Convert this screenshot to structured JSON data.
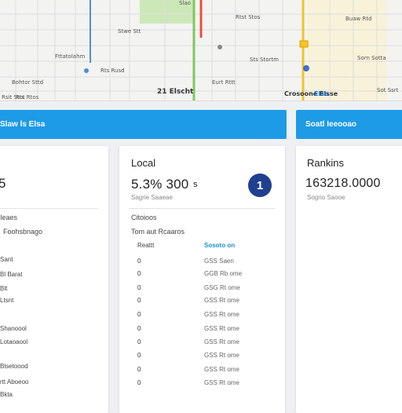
{
  "map": {
    "labels": [
      {
        "id": "a",
        "text": "21 Elscht",
        "kind": "strong"
      },
      {
        "id": "b",
        "text": "Crosoone Elsse",
        "kind": "strong"
      },
      {
        "id": "c",
        "text": "Elso",
        "kind": "blue"
      },
      {
        "id": "d",
        "text": "Bohtor Sttd",
        "kind": "plain"
      },
      {
        "id": "e",
        "text": "Fttatolahm",
        "kind": "plain"
      },
      {
        "id": "f",
        "text": "Rts Rusd",
        "kind": "plain"
      },
      {
        "id": "g",
        "text": "Eurt Rttt",
        "kind": "plain"
      },
      {
        "id": "h",
        "text": "Sts Stortm",
        "kind": "plain"
      },
      {
        "id": "i",
        "text": "Sorn Sotta",
        "kind": "plain"
      },
      {
        "id": "j",
        "text": "Buaw Rtd",
        "kind": "plain"
      },
      {
        "id": "k",
        "text": "Stwe Stt",
        "kind": "plain"
      },
      {
        "id": "l",
        "text": "Rtst Stos",
        "kind": "plain"
      },
      {
        "id": "m",
        "text": "Sot Ssrt",
        "kind": "plain"
      },
      {
        "id": "n",
        "text": "Rsit Stts",
        "kind": "plain"
      },
      {
        "id": "o",
        "text": "Rot Rtos",
        "kind": "plain"
      },
      {
        "id": "p",
        "text": "Slao",
        "kind": "plain"
      }
    ]
  },
  "banners": {
    "left": "Slaw ls Elsa",
    "right": "Soatl Ieeooao"
  },
  "card_left": {
    "big_value": "5",
    "section_title": "Ileaes",
    "sub_title": "Foohsbnago",
    "rows": [
      "Sant",
      "Bl Barat",
      "Blt",
      "Ltsnt",
      "Shanoool",
      "Lotaoaool",
      "Blsetoood",
      "rtt Aboeoo",
      "Bkta"
    ]
  },
  "card_local": {
    "title": "Local",
    "big_value": "5.3% 300",
    "big_value_suffix": "s",
    "sub_value": "Sagrie Saaeae",
    "rank": "1",
    "section_title": "Citoioos",
    "sub_title": "Tom aut Rcaaros",
    "col1_head": "Reattt",
    "col2_head": "Sosoto on",
    "rows": [
      {
        "c1": "0",
        "c2": "GSS Saen"
      },
      {
        "c1": "0",
        "c2": "GGB Rb ome"
      },
      {
        "c1": "0",
        "c2": "GSG Rt ome"
      },
      {
        "c1": "0",
        "c2": "GSS Rt ome"
      },
      {
        "c1": "0",
        "c2": "GSS Rt ome"
      },
      {
        "c1": "0",
        "c2": "GSS Rt ome"
      },
      {
        "c1": "0",
        "c2": "GSS Rt ome"
      },
      {
        "c1": "0",
        "c2": "GSS Rt ome"
      },
      {
        "c1": "0",
        "c2": "GSS Rt ome"
      },
      {
        "c1": "0",
        "c2": "GSS Rt ome"
      }
    ]
  },
  "card_rankings": {
    "title": "Rankins",
    "big_value": "163218.0000",
    "sub_value": "Sogrio Saooe"
  },
  "colors": {
    "banner": "#1d9be6",
    "badge": "#1f3f8f",
    "link": "#1a8fd8",
    "map_green": "#7ec95f",
    "map_yellow": "#f3c623",
    "map_red": "#e8503a"
  }
}
